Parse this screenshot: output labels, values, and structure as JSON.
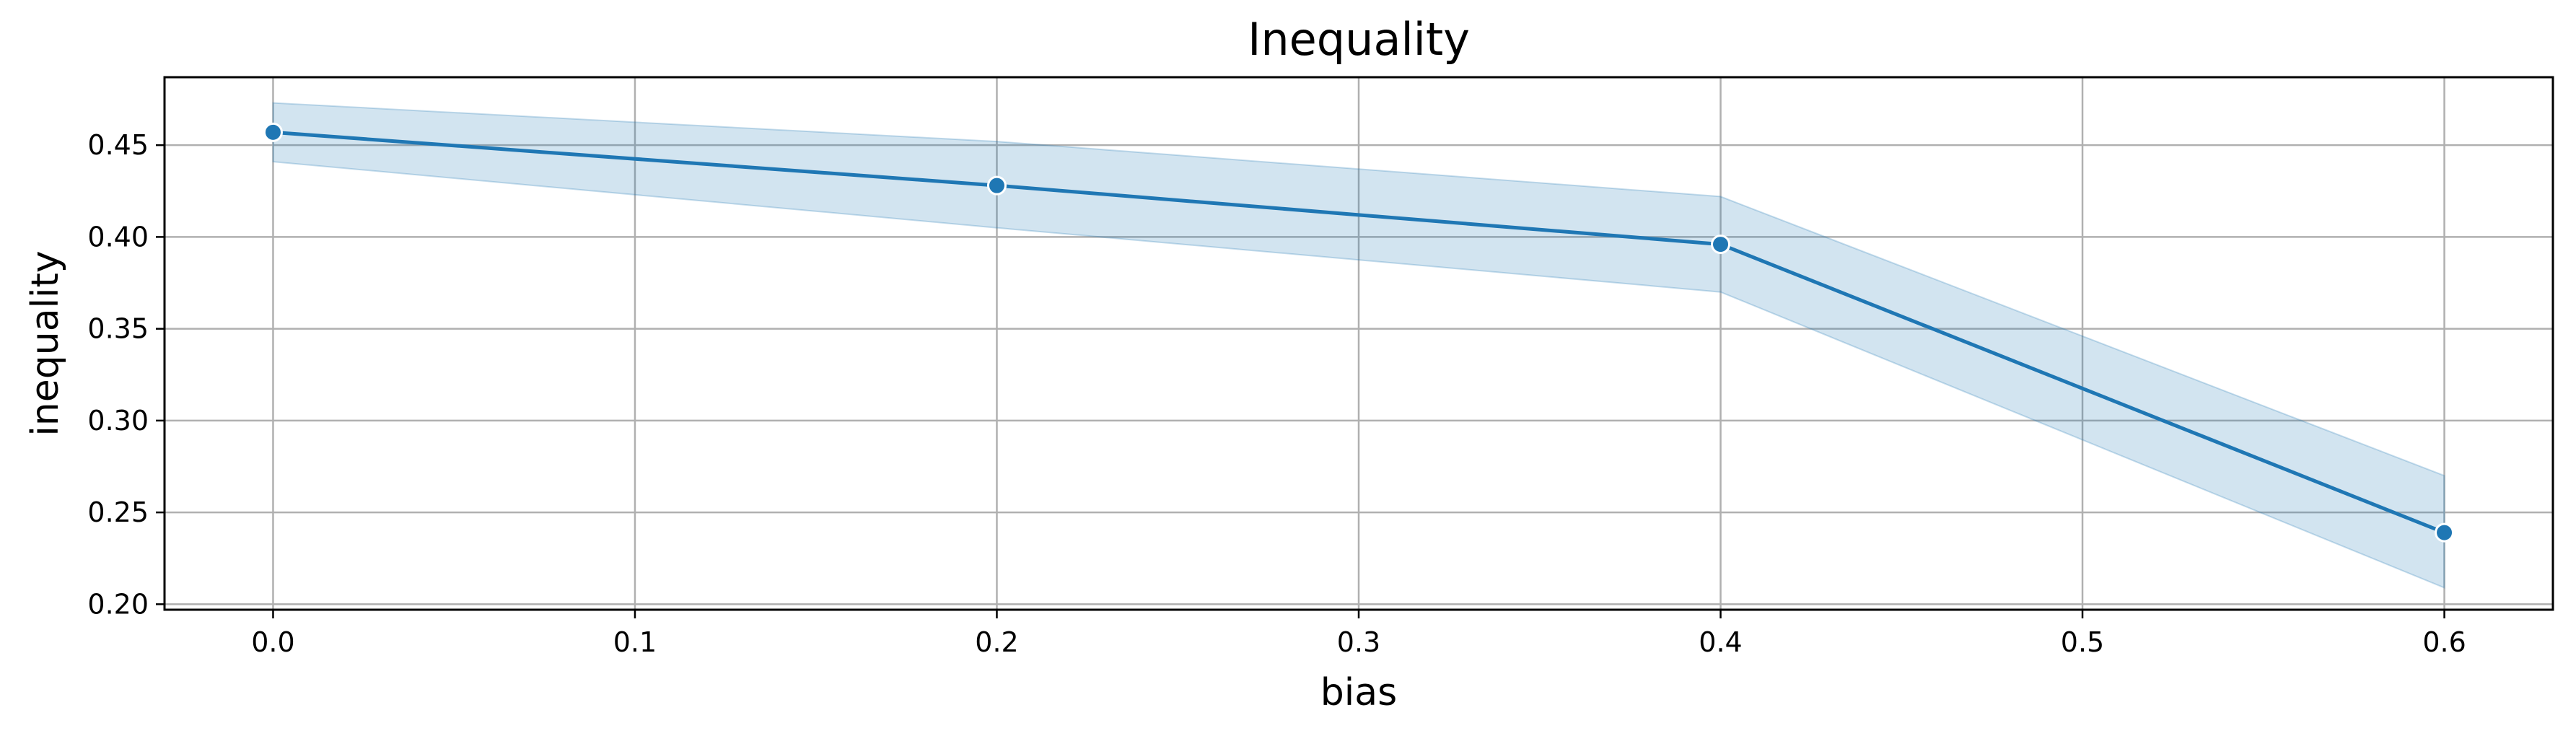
{
  "chart_data": {
    "type": "line",
    "title": "Inequality",
    "xlabel": "bias",
    "ylabel": "inequality",
    "xlim": [
      -0.03,
      0.63
    ],
    "ylim": [
      0.197,
      0.487
    ],
    "xticks": [
      "0.0",
      "0.1",
      "0.2",
      "0.3",
      "0.4",
      "0.5",
      "0.6"
    ],
    "yticks": [
      "0.20",
      "0.25",
      "0.30",
      "0.35",
      "0.40",
      "0.45"
    ],
    "grid": true,
    "legend": "none",
    "series": [
      {
        "x": [
          0.0,
          0.2,
          0.4,
          0.6
        ],
        "y": [
          0.457,
          0.428,
          0.396,
          0.239
        ],
        "ci_low": [
          0.441,
          0.405,
          0.37,
          0.209
        ],
        "ci_high": [
          0.473,
          0.452,
          0.422,
          0.27
        ],
        "color": "#1f77b4"
      }
    ]
  }
}
